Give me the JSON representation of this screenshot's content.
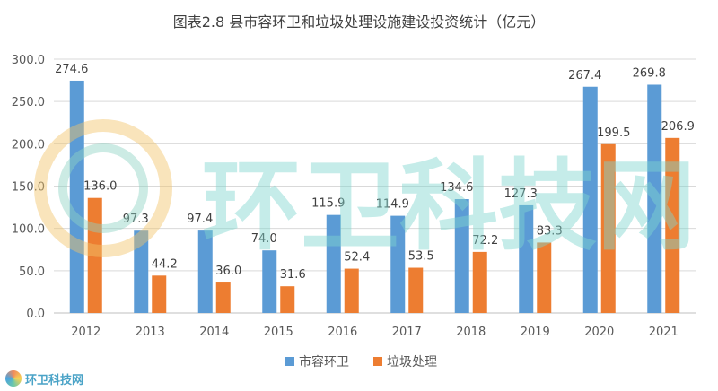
{
  "chart_data": {
    "type": "bar",
    "title": "图表2.8 县市容环卫和垃圾处理设施建设投资统计（亿元）",
    "categories": [
      "2012",
      "2013",
      "2014",
      "2015",
      "2016",
      "2017",
      "2018",
      "2019",
      "2020",
      "2021"
    ],
    "series": [
      {
        "name": "市容环卫",
        "values": [
          274.6,
          97.3,
          97.4,
          74.0,
          115.9,
          114.9,
          134.6,
          127.3,
          267.4,
          269.8
        ]
      },
      {
        "name": "垃圾处理",
        "values": [
          136.0,
          44.2,
          36.0,
          31.6,
          52.4,
          53.5,
          72.2,
          83.3,
          199.5,
          206.9
        ]
      }
    ],
    "ylim": [
      0,
      300
    ],
    "yticks": [
      0,
      50,
      100,
      150,
      200,
      250,
      300
    ],
    "xlabel": "",
    "ylabel": "",
    "grid": true,
    "legend_position": "bottom",
    "colors": [
      "#5b9bd5",
      "#ed7d31"
    ]
  },
  "watermark": {
    "center_text": "环卫科技网",
    "corner_text": "环卫科技网"
  }
}
